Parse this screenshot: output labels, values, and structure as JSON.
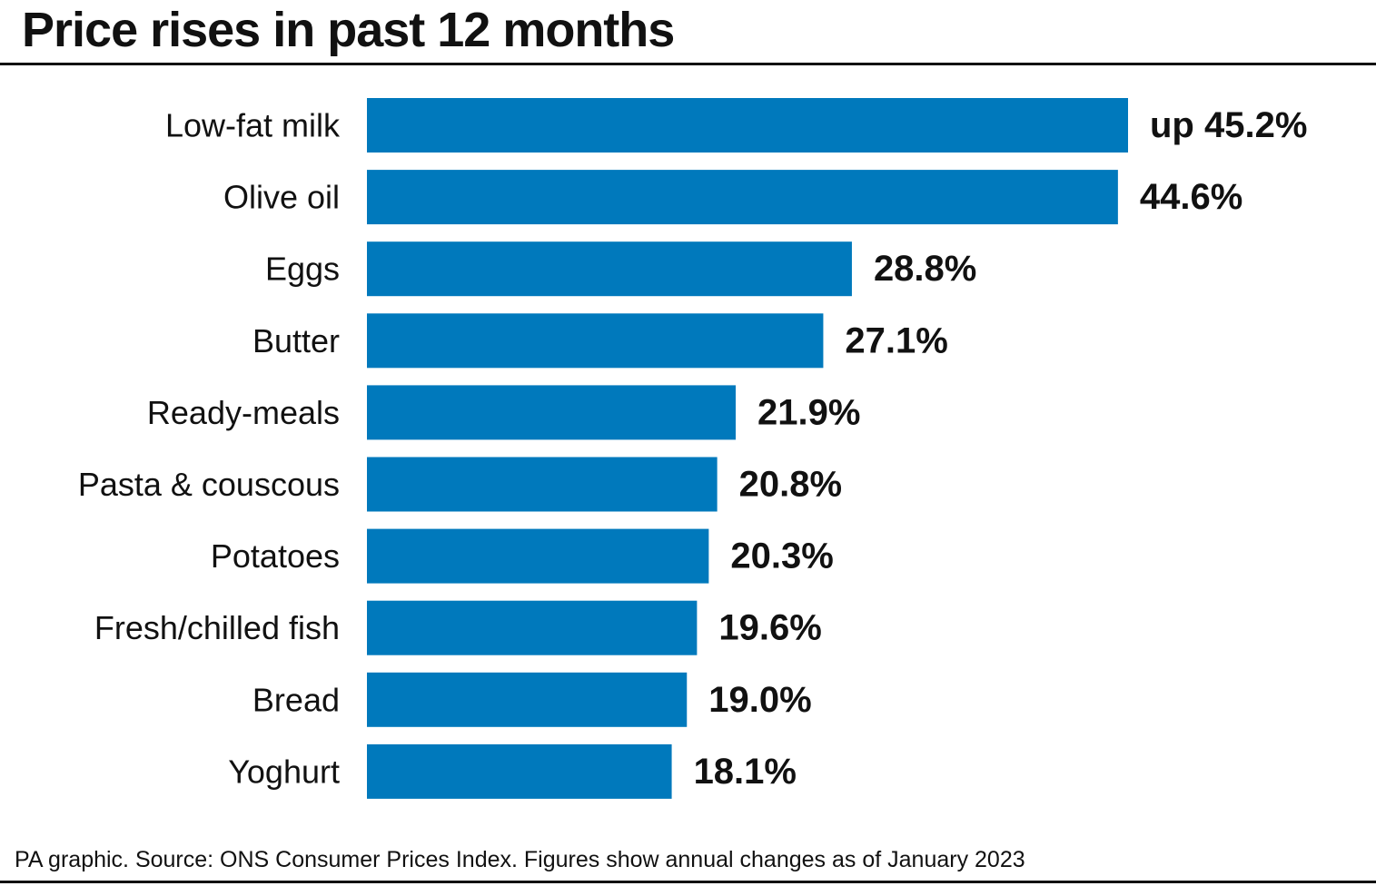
{
  "title": "Price rises in past 12 months",
  "footer": "PA graphic. Source: ONS Consumer Prices Index. Figures show annual changes as of January 2023",
  "colors": {
    "bar": "#0079BC",
    "text": "#111111",
    "rule": "#111111"
  },
  "chart_data": {
    "type": "bar",
    "orientation": "horizontal",
    "categories": [
      "Low-fat milk",
      "Olive oil",
      "Eggs",
      "Butter",
      "Ready-meals",
      "Pasta & couscous",
      "Potatoes",
      "Fresh/chilled fish",
      "Bread",
      "Yoghurt"
    ],
    "values": [
      45.2,
      44.6,
      28.8,
      27.1,
      21.9,
      20.8,
      20.3,
      19.6,
      19.0,
      18.1
    ],
    "value_labels": [
      "up 45.2%",
      "44.6%",
      "28.8%",
      "27.1%",
      "21.9%",
      "20.8%",
      "20.3%",
      "19.6%",
      "19.0%",
      "18.1%"
    ],
    "title": "Price rises in past 12 months",
    "xlabel": "",
    "ylabel": "",
    "unit": "%",
    "grid": false,
    "legend": "none"
  }
}
